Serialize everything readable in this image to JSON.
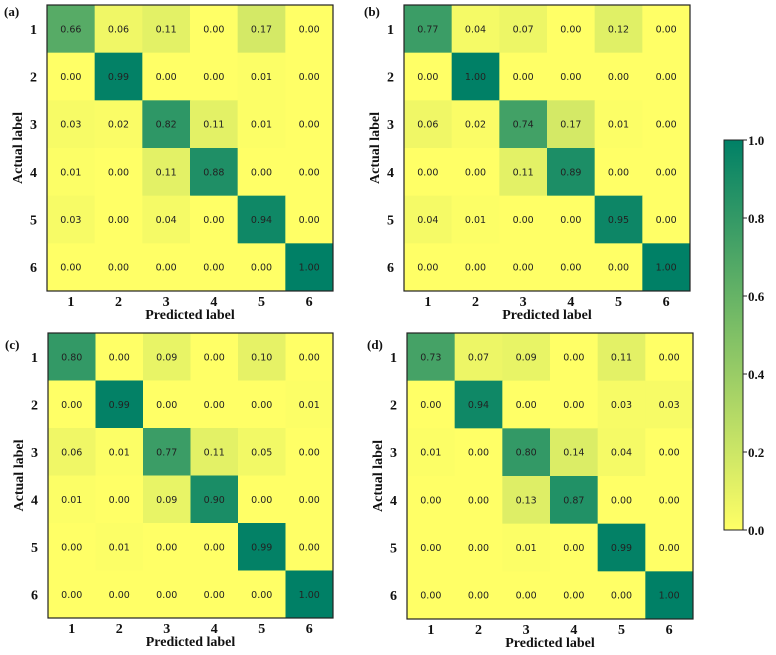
{
  "chart_data": [
    {
      "type": "heatmap",
      "panel": "(a)",
      "xlabel": "Predicted label",
      "ylabel": "Actual label",
      "x_categories": [
        "1",
        "2",
        "3",
        "4",
        "5",
        "6"
      ],
      "y_categories": [
        "1",
        "2",
        "3",
        "4",
        "5",
        "6"
      ],
      "values": [
        [
          0.66,
          0.06,
          0.11,
          0.0,
          0.17,
          0.0
        ],
        [
          0.0,
          0.99,
          0.0,
          0.0,
          0.01,
          0.0
        ],
        [
          0.03,
          0.02,
          0.82,
          0.11,
          0.01,
          0.0
        ],
        [
          0.01,
          0.0,
          0.11,
          0.88,
          0.0,
          0.0
        ],
        [
          0.03,
          0.0,
          0.04,
          0.0,
          0.94,
          0.0
        ],
        [
          0.0,
          0.0,
          0.0,
          0.0,
          0.0,
          1.0
        ]
      ]
    },
    {
      "type": "heatmap",
      "panel": "(b)",
      "xlabel": "Predicted label",
      "ylabel": "Actual label",
      "x_categories": [
        "1",
        "2",
        "3",
        "4",
        "5",
        "6"
      ],
      "y_categories": [
        "1",
        "2",
        "3",
        "4",
        "5",
        "6"
      ],
      "values": [
        [
          0.77,
          0.04,
          0.07,
          0.0,
          0.12,
          0.0
        ],
        [
          0.0,
          1.0,
          0.0,
          0.0,
          0.0,
          0.0
        ],
        [
          0.06,
          0.02,
          0.74,
          0.17,
          0.01,
          0.0
        ],
        [
          0.0,
          0.0,
          0.11,
          0.89,
          0.0,
          0.0
        ],
        [
          0.04,
          0.01,
          0.0,
          0.0,
          0.95,
          0.0
        ],
        [
          0.0,
          0.0,
          0.0,
          0.0,
          0.0,
          1.0
        ]
      ]
    },
    {
      "type": "heatmap",
      "panel": "(c)",
      "xlabel": "Predicted label",
      "ylabel": "Actual label",
      "x_categories": [
        "1",
        "2",
        "3",
        "4",
        "5",
        "6"
      ],
      "y_categories": [
        "1",
        "2",
        "3",
        "4",
        "5",
        "6"
      ],
      "values": [
        [
          0.8,
          0.0,
          0.09,
          0.0,
          0.1,
          0.0
        ],
        [
          0.0,
          0.99,
          0.0,
          0.0,
          0.0,
          0.01
        ],
        [
          0.06,
          0.01,
          0.77,
          0.11,
          0.05,
          0.0
        ],
        [
          0.01,
          0.0,
          0.09,
          0.9,
          0.0,
          0.0
        ],
        [
          0.0,
          0.01,
          0.0,
          0.0,
          0.99,
          0.0
        ],
        [
          0.0,
          0.0,
          0.0,
          0.0,
          0.0,
          1.0
        ]
      ]
    },
    {
      "type": "heatmap",
      "panel": "(d)",
      "xlabel": "Predicted label",
      "ylabel": "Actual label",
      "x_categories": [
        "1",
        "2",
        "3",
        "4",
        "5",
        "6"
      ],
      "y_categories": [
        "1",
        "2",
        "3",
        "4",
        "5",
        "6"
      ],
      "values": [
        [
          0.73,
          0.07,
          0.09,
          0.0,
          0.11,
          0.0
        ],
        [
          0.0,
          0.94,
          0.0,
          0.0,
          0.03,
          0.03
        ],
        [
          0.01,
          0.0,
          0.8,
          0.14,
          0.04,
          0.0
        ],
        [
          0.0,
          0.0,
          0.13,
          0.87,
          0.0,
          0.0
        ],
        [
          0.0,
          0.0,
          0.01,
          0.0,
          0.99,
          0.0
        ],
        [
          0.0,
          0.0,
          0.0,
          0.0,
          0.0,
          1.0
        ]
      ]
    }
  ],
  "colorbar": {
    "range": [
      0.0,
      1.0
    ],
    "ticks": [
      "0.0",
      "0.2",
      "0.4",
      "0.6",
      "0.8",
      "1.0"
    ],
    "tick_values": [
      0.0,
      0.2,
      0.4,
      0.6,
      0.8,
      1.0
    ],
    "colormap": "summer_r",
    "color_low": "#ffff66",
    "color_high": "#008066",
    "placement": "right"
  }
}
